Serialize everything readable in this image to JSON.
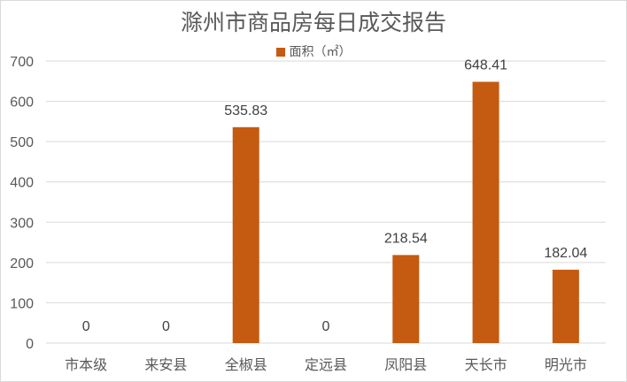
{
  "chart_data": {
    "type": "bar",
    "title": "滁州市商品房每日成交报告",
    "series": [
      {
        "name": "面积（㎡）",
        "color": "#c55a11",
        "values": [
          0,
          0,
          535.83,
          0,
          218.54,
          648.41,
          182.04
        ],
        "labels": [
          "0",
          "0",
          "535.83",
          "0",
          "218.54",
          "648.41",
          "182.04"
        ]
      }
    ],
    "categories": [
      "市本级",
      "来安县",
      "全椒县",
      "定远县",
      "凤阳县",
      "天长市",
      "明光市"
    ],
    "ylim": [
      0,
      700
    ],
    "yticks": [
      0,
      100,
      200,
      300,
      400,
      500,
      600,
      700
    ],
    "grid": true,
    "legend_position": "top"
  }
}
